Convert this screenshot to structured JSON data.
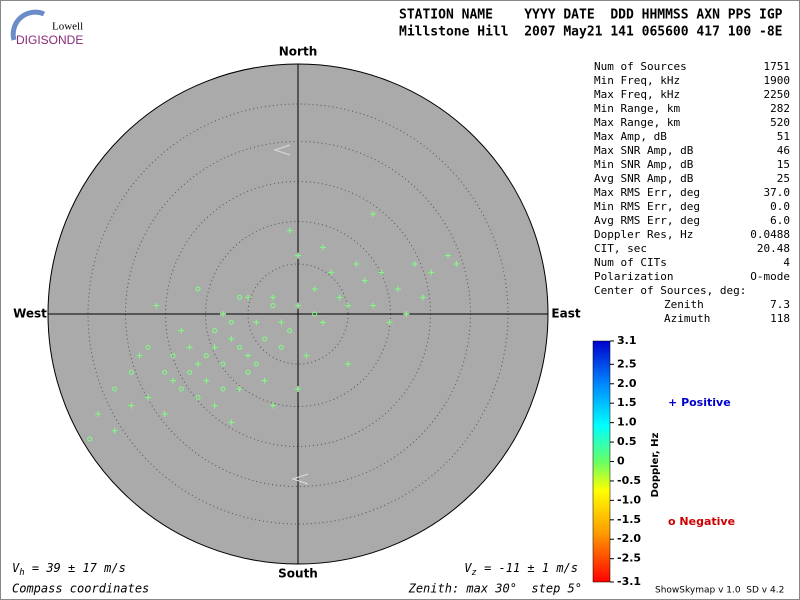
{
  "logo": {
    "line1": "Lowell",
    "line2": "DIGISONDE"
  },
  "header": {
    "labels": "STATION NAME    YYYY DATE  DDD HHMMSS AXN PPS IGP",
    "values": "Millstone Hill  2007 May21 141 065600 417 100 -8E"
  },
  "parameters": [
    [
      "Num of Sources",
      "1751"
    ],
    [
      "Min Freq, kHz",
      "1900"
    ],
    [
      "Max Freq, kHz",
      "2250"
    ],
    [
      "Min Range, km",
      "282"
    ],
    [
      "Max Range, km",
      "520"
    ],
    [
      "Max Amp, dB",
      "51"
    ],
    [
      "Max SNR Amp, dB",
      "46"
    ],
    [
      "Min SNR Amp, dB",
      "15"
    ],
    [
      "Avg SNR Amp, dB",
      "25"
    ],
    [
      "Max RMS Err, deg",
      "37.0"
    ],
    [
      "Min RMS Err, deg",
      "0.0"
    ],
    [
      "Avg RMS Err, deg",
      "6.0"
    ],
    [
      "Doppler Res, Hz",
      "0.0488"
    ],
    [
      "CIT, sec",
      "20.48"
    ],
    [
      "Num of CITs",
      "4"
    ],
    [
      "Polarization",
      "O-mode"
    ]
  ],
  "center": {
    "title": "Center of Sources, deg:",
    "zenith": [
      "Zenith",
      "7.3"
    ],
    "azimuth": [
      "Azimuth",
      "118"
    ]
  },
  "compass": {
    "north": "North",
    "south": "South",
    "east": "East",
    "west": "West"
  },
  "colorbar": {
    "label": "Doppler, Hz",
    "lim": [
      -3.1,
      3.1
    ],
    "ticks": [
      3.1,
      2.5,
      {
        "value": 2,
        "label": "2.0"
      },
      1.5,
      {
        "value": 1,
        "label": "1.0"
      },
      0.5,
      0,
      -0.5,
      {
        "value": -1,
        "label": "-1.0"
      },
      -1.5,
      {
        "value": -2,
        "label": "-2.0"
      },
      -2.5,
      -3.1
    ]
  },
  "legend": {
    "positive_marker": "+",
    "positive": "Positive",
    "negative_marker": "o",
    "negative": "Negative"
  },
  "footer": {
    "vh": [
      "V",
      "h",
      " = 39 ± 17 m/s"
    ],
    "vz": [
      "V",
      "z",
      " = -11 ± 1 m/s"
    ],
    "coords": "Compass coordinates",
    "zenith": "Zenith: max 30°  step 5°",
    "version": "ShowSkymap v 1.0  SD v 4.2"
  },
  "chart_data": {
    "type": "scatter",
    "xlim": [
      -30,
      30
    ],
    "ylim": [
      -30,
      30
    ],
    "series": [
      {
        "name": "Positive",
        "marker": "+",
        "color": "#80ff80",
        "x": [
          -3,
          2,
          5,
          8,
          10,
          12,
          14,
          16,
          18,
          19,
          -5,
          -8,
          -10,
          -12,
          -6,
          -2,
          0,
          3,
          6,
          9,
          -15,
          -18,
          -20,
          -22,
          -4,
          -7,
          -11,
          -13,
          -9,
          -14,
          1,
          0,
          -3,
          4,
          7,
          -1,
          0,
          9,
          -16,
          -10,
          11,
          13,
          -6,
          -17,
          15,
          -24,
          -19,
          -8,
          6,
          3
        ],
        "y": [
          2,
          3,
          2,
          4,
          5,
          3,
          6,
          5,
          7,
          6,
          -1,
          -3,
          -4,
          -6,
          -5,
          -1,
          1,
          -1,
          1,
          1,
          -8,
          -10,
          -11,
          -14,
          -8,
          -9,
          -8,
          -4,
          0,
          -2,
          -5,
          -9,
          -11,
          5,
          6,
          10,
          7,
          12,
          -12,
          -11,
          -1,
          0,
          2,
          1,
          2,
          -12,
          -5,
          -13,
          -6,
          8
        ]
      },
      {
        "name": "Negative",
        "marker": "o",
        "color": "#80ff80",
        "x": [
          -9,
          -11,
          -7,
          -13,
          -6,
          -4,
          -14,
          -16,
          -10,
          -5,
          -2,
          -12,
          -20,
          -18,
          -8,
          -3,
          2,
          -1,
          -15,
          -9,
          -22,
          -7,
          -12,
          -25
        ],
        "y": [
          -6,
          -5,
          -4,
          -7,
          -7,
          -3,
          -9,
          -7,
          -2,
          -6,
          -4,
          -10,
          -7,
          -4,
          -1,
          1,
          0,
          -2,
          -5,
          -9,
          -9,
          2,
          3,
          -15
        ]
      }
    ]
  }
}
